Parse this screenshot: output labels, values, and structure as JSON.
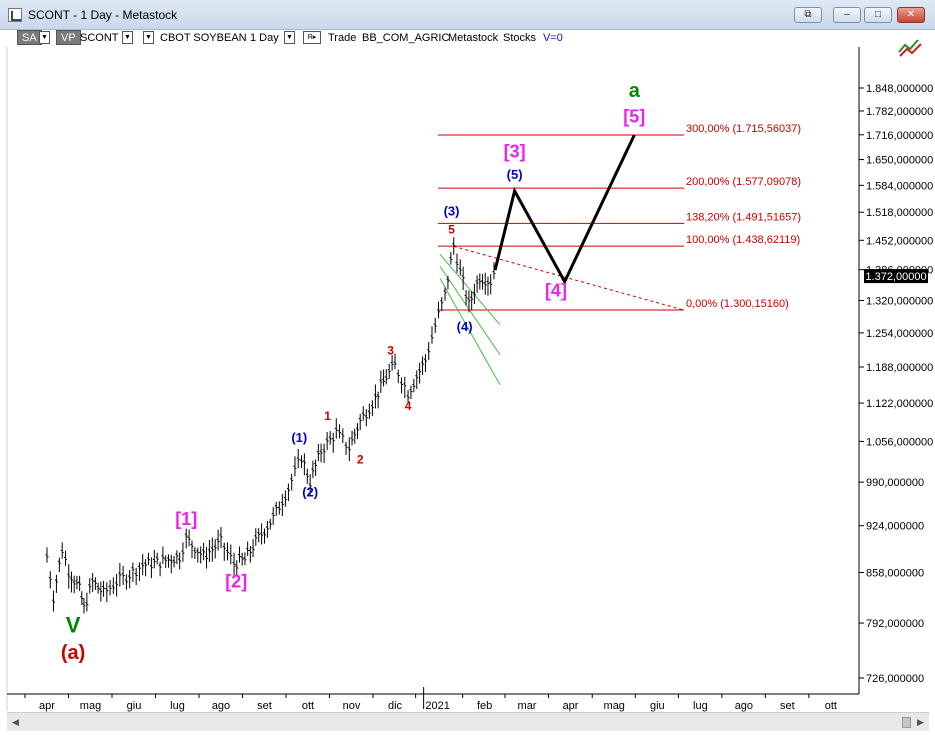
{
  "window": {
    "title": "SCONT - 1 Day - Metastock",
    "buttons": {
      "restore": "⧉",
      "minimize": "–",
      "maximize": "□",
      "close": "✕"
    }
  },
  "toolbar": {
    "sa": "SA",
    "vp": "VP",
    "symbol": "SCONT",
    "security": "CBOT SOYBEAN",
    "period": "1 Day",
    "r_label": "R",
    "trade": "Trade",
    "provider": "BB_COM_AGRIC",
    "source": "Metastock",
    "type": "Stocks",
    "volume": "V=0"
  },
  "colors": {
    "up_label": "#0000cc",
    "minor_label": "#cc0000",
    "bracket_label": "#ee22ee",
    "major_label": "#008800",
    "fib_line": "#cc0000",
    "projection": "#000000",
    "channel": "#44bb44"
  },
  "chart_data": {
    "type": "bar",
    "series_name": "",
    "yaxis": {
      "scale": "log",
      "ticks": [
        "726,000000",
        "792,000000",
        "858,000000",
        "924,000000",
        "990,000000",
        "1.056,000000",
        "1.122,000000",
        "1.188,000000",
        "1.254,000000",
        "1.320,000000",
        "1.386,000000",
        "1.452,000000",
        "1.518,000000",
        "1.584,000000",
        "1.650,000000",
        "1.716,000000",
        "1.782,000000",
        "1.848,000000"
      ],
      "tick_values": [
        726,
        792,
        858,
        924,
        990,
        1056,
        1122,
        1188,
        1254,
        1320,
        1386,
        1452,
        1518,
        1584,
        1650,
        1716,
        1782,
        1848
      ],
      "last_price": "1.372,00000"
    },
    "xaxis": {
      "labels": [
        "apr",
        "mag",
        "giu",
        "lug",
        "ago",
        "set",
        "ott",
        "nov",
        "dic",
        "2021",
        "feb",
        "mar",
        "apr",
        "mag",
        "giu",
        "lug",
        "ago",
        "set",
        "ott"
      ]
    },
    "price_path": [
      [
        0,
        880
      ],
      [
        0.15,
        825
      ],
      [
        0.35,
        890
      ],
      [
        0.5,
        860
      ],
      [
        0.75,
        835
      ],
      [
        0.85,
        810
      ],
      [
        1.05,
        845
      ],
      [
        1.3,
        830
      ],
      [
        1.6,
        845
      ],
      [
        1.9,
        855
      ],
      [
        2.2,
        868
      ],
      [
        2.6,
        872
      ],
      [
        3.05,
        880
      ],
      [
        3.2,
        905
      ],
      [
        3.6,
        880
      ],
      [
        4.0,
        900
      ],
      [
        4.3,
        870
      ],
      [
        4.55,
        875
      ],
      [
        4.8,
        900
      ],
      [
        5.2,
        935
      ],
      [
        5.55,
        980
      ],
      [
        5.85,
        1030
      ],
      [
        6.05,
        990
      ],
      [
        6.3,
        1040
      ],
      [
        6.65,
        1070
      ],
      [
        6.95,
        1045
      ],
      [
        7.2,
        1090
      ],
      [
        7.55,
        1130
      ],
      [
        7.8,
        1170
      ],
      [
        8.0,
        1190
      ],
      [
        8.3,
        1140
      ],
      [
        8.7,
        1200
      ],
      [
        9.0,
        1290
      ],
      [
        9.15,
        1330
      ],
      [
        9.35,
        1440
      ],
      [
        9.5,
        1380
      ],
      [
        9.7,
        1310
      ],
      [
        9.95,
        1370
      ],
      [
        10.2,
        1360
      ],
      [
        10.35,
        1400
      ]
    ],
    "fib_levels": [
      {
        "label": "300,00% (1.715,56037)",
        "value": 1715.56
      },
      {
        "label": "200,00% (1.577,09078)",
        "value": 1577.09
      },
      {
        "label": "138,20% (1.491,51657)",
        "value": 1491.52
      },
      {
        "label": "100,00% (1.438,62119)",
        "value": 1438.62
      },
      {
        "label": "0,00% (1.300,15160)",
        "value": 1300.15
      }
    ],
    "projection": [
      [
        10.3,
        1385
      ],
      [
        10.75,
        1570
      ],
      [
        11.9,
        1360
      ],
      [
        13.5,
        1715
      ]
    ],
    "wave_labels": [
      {
        "text": "V",
        "x": 0.6,
        "y": 780,
        "kind": "major",
        "size": 22
      },
      {
        "text": "(a)",
        "x": 0.6,
        "y": 748,
        "kind": "minor",
        "size": 20
      },
      {
        "text": "[1]",
        "x": 3.2,
        "y": 925,
        "kind": "bracket",
        "size": 18
      },
      {
        "text": "[2]",
        "x": 4.35,
        "y": 838,
        "kind": "bracket",
        "size": 18
      },
      {
        "text": "(1)",
        "x": 5.8,
        "y": 1055,
        "kind": "up",
        "size": 13
      },
      {
        "text": "(2)",
        "x": 6.05,
        "y": 968,
        "kind": "up",
        "size": 13
      },
      {
        "text": "1",
        "x": 6.45,
        "y": 1092,
        "kind": "minor",
        "size": 12
      },
      {
        "text": "2",
        "x": 7.2,
        "y": 1020,
        "kind": "minor",
        "size": 12
      },
      {
        "text": "3",
        "x": 7.9,
        "y": 1212,
        "kind": "minor",
        "size": 12
      },
      {
        "text": "4",
        "x": 8.3,
        "y": 1110,
        "kind": "minor",
        "size": 12
      },
      {
        "text": "(3)",
        "x": 9.3,
        "y": 1510,
        "kind": "up",
        "size": 13
      },
      {
        "text": "5",
        "x": 9.3,
        "y": 1468,
        "kind": "minor",
        "size": 12
      },
      {
        "text": "(4)",
        "x": 9.6,
        "y": 1258,
        "kind": "up",
        "size": 13
      },
      {
        "text": "(5)",
        "x": 10.75,
        "y": 1600,
        "kind": "up",
        "size": 13
      },
      {
        "text": "[3]",
        "x": 10.75,
        "y": 1656,
        "kind": "bracket",
        "size": 18
      },
      {
        "text": "[4]",
        "x": 11.7,
        "y": 1328,
        "kind": "bracket",
        "size": 18
      },
      {
        "text": "[5]",
        "x": 13.5,
        "y": 1750,
        "kind": "bracket",
        "size": 18
      },
      {
        "text": "a",
        "x": 13.5,
        "y": 1822,
        "kind": "major",
        "size": 20
      }
    ]
  }
}
